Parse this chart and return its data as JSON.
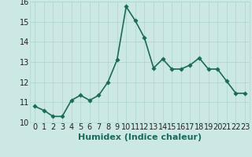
{
  "x": [
    0,
    1,
    2,
    3,
    4,
    5,
    6,
    7,
    8,
    9,
    10,
    11,
    12,
    13,
    14,
    15,
    16,
    17,
    18,
    19,
    20,
    21,
    22,
    23
  ],
  "y": [
    10.8,
    10.6,
    10.3,
    10.3,
    11.1,
    11.35,
    11.1,
    11.35,
    12.0,
    13.1,
    15.75,
    15.05,
    14.2,
    12.7,
    13.15,
    12.65,
    12.65,
    12.85,
    13.2,
    12.65,
    12.65,
    12.05,
    11.45,
    11.45
  ],
  "xlim": [
    -0.5,
    23.5
  ],
  "ylim": [
    10,
    16
  ],
  "yticks": [
    10,
    11,
    12,
    13,
    14,
    15,
    16
  ],
  "xticks": [
    0,
    1,
    2,
    3,
    4,
    5,
    6,
    7,
    8,
    9,
    10,
    11,
    12,
    13,
    14,
    15,
    16,
    17,
    18,
    19,
    20,
    21,
    22,
    23
  ],
  "xlabel": "Humidex (Indice chaleur)",
  "line_color": "#1a6b5a",
  "marker_color": "#1a6b5a",
  "bg_color": "#cce8e4",
  "grid_color": "#b0d8d0",
  "xlabel_color": "#1a6b5a",
  "xlabel_fontsize": 8,
  "tick_fontsize": 7,
  "linewidth": 1.2,
  "markersize": 2.8
}
